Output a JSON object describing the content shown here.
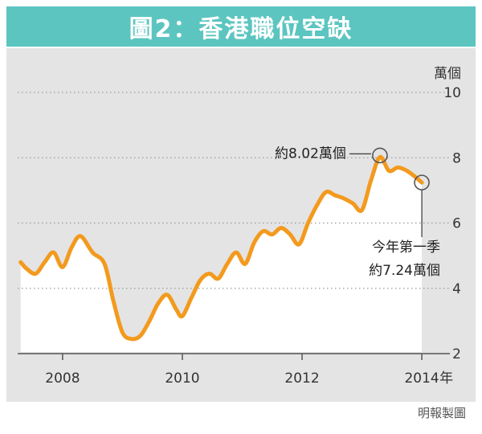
{
  "header": {
    "title": "圖2：香港職位空缺"
  },
  "credit": "明報製圖",
  "colors": {
    "header_bg": "#5cc5c0",
    "panel_bg": "#e4e4e4",
    "line": "#f39a1e",
    "area": "#ffffff",
    "grid": "#9a9a9a"
  },
  "chart_data": {
    "type": "area",
    "title": "圖2：香港職位空缺",
    "ylabel": "萬個",
    "x_unit_label": "年",
    "ylim": [
      2,
      10
    ],
    "xlim": [
      2007.25,
      2014.2
    ],
    "y_ticks": [
      "2",
      "4",
      "6",
      "8",
      "10"
    ],
    "x_ticks": [
      "2008",
      "2010",
      "2012",
      "2014"
    ],
    "grid": true,
    "series": [
      {
        "x": [
          2007.3,
          2007.4,
          2007.55,
          2007.7,
          2007.85,
          2008.0,
          2008.15,
          2008.3,
          2008.5,
          2008.7,
          2008.85,
          2009.0,
          2009.15,
          2009.3,
          2009.45,
          2009.6,
          2009.75,
          2009.9,
          2010.0,
          2010.15,
          2010.3,
          2010.45,
          2010.6,
          2010.75,
          2010.9,
          2011.05,
          2011.2,
          2011.35,
          2011.5,
          2011.65,
          2011.8,
          2011.95,
          2012.1,
          2012.25,
          2012.4,
          2012.55,
          2012.7,
          2012.85,
          2013.0,
          2013.15,
          2013.3,
          2013.45,
          2013.6,
          2013.75,
          2013.9,
          2014.0
        ],
        "y": [
          4.8,
          4.6,
          4.45,
          4.8,
          5.1,
          4.65,
          5.25,
          5.6,
          5.1,
          4.75,
          3.6,
          2.65,
          2.45,
          2.55,
          3.0,
          3.55,
          3.8,
          3.35,
          3.15,
          3.7,
          4.25,
          4.45,
          4.3,
          4.75,
          5.1,
          4.75,
          5.4,
          5.75,
          5.65,
          5.85,
          5.65,
          5.35,
          6.0,
          6.55,
          6.95,
          6.85,
          6.75,
          6.6,
          6.4,
          7.3,
          8.02,
          7.6,
          7.7,
          7.6,
          7.4,
          7.24
        ]
      }
    ],
    "annotations": {
      "peak": {
        "text": "約8.02萬個",
        "x": 2013.3,
        "y": 8.02
      },
      "latest": {
        "line1": "今年第一季",
        "line2": "約7.24萬個",
        "x": 2014.0,
        "y": 7.24
      }
    }
  }
}
